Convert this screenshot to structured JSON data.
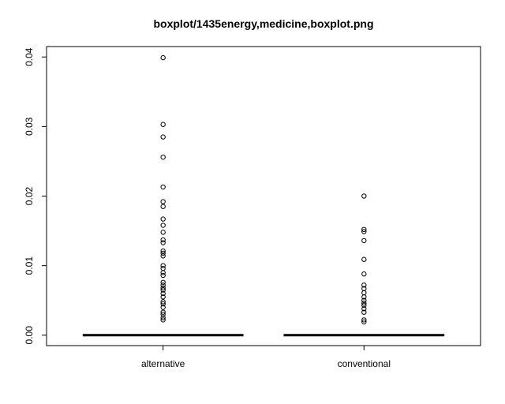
{
  "chart_data": {
    "type": "boxplot",
    "title": "boxplot/1435energy,medicine,boxplot.png",
    "xlabel": "",
    "ylabel": "",
    "ylim": [
      -0.0015,
      0.0415
    ],
    "yticks": [
      0.0,
      0.01,
      0.02,
      0.03,
      0.04
    ],
    "ytick_labels": [
      "0.00",
      "0.01",
      "0.02",
      "0.03",
      "0.04"
    ],
    "grid": false,
    "categories": [
      "alternative",
      "conventional"
    ],
    "boxes": [
      {
        "category": "alternative",
        "min": 0,
        "q1": 0,
        "median": 0,
        "q3": 0,
        "max": 0,
        "outliers": [
          0.0022,
          0.0025,
          0.003,
          0.0033,
          0.004,
          0.0045,
          0.0048,
          0.0055,
          0.006,
          0.0065,
          0.0068,
          0.0072,
          0.0076,
          0.0086,
          0.009,
          0.0096,
          0.01,
          0.0114,
          0.0118,
          0.0121,
          0.0133,
          0.0137,
          0.0148,
          0.0158,
          0.0167,
          0.0185,
          0.0192,
          0.0213,
          0.0256,
          0.0285,
          0.0303,
          0.0399
        ]
      },
      {
        "category": "conventional",
        "min": 0,
        "q1": 0,
        "median": 0,
        "q3": 0,
        "max": 0,
        "outliers": [
          0.0019,
          0.0022,
          0.0033,
          0.0038,
          0.0043,
          0.0046,
          0.005,
          0.0055,
          0.0061,
          0.0067,
          0.0072,
          0.0088,
          0.0109,
          0.0136,
          0.0149,
          0.0152,
          0.02
        ]
      }
    ]
  }
}
